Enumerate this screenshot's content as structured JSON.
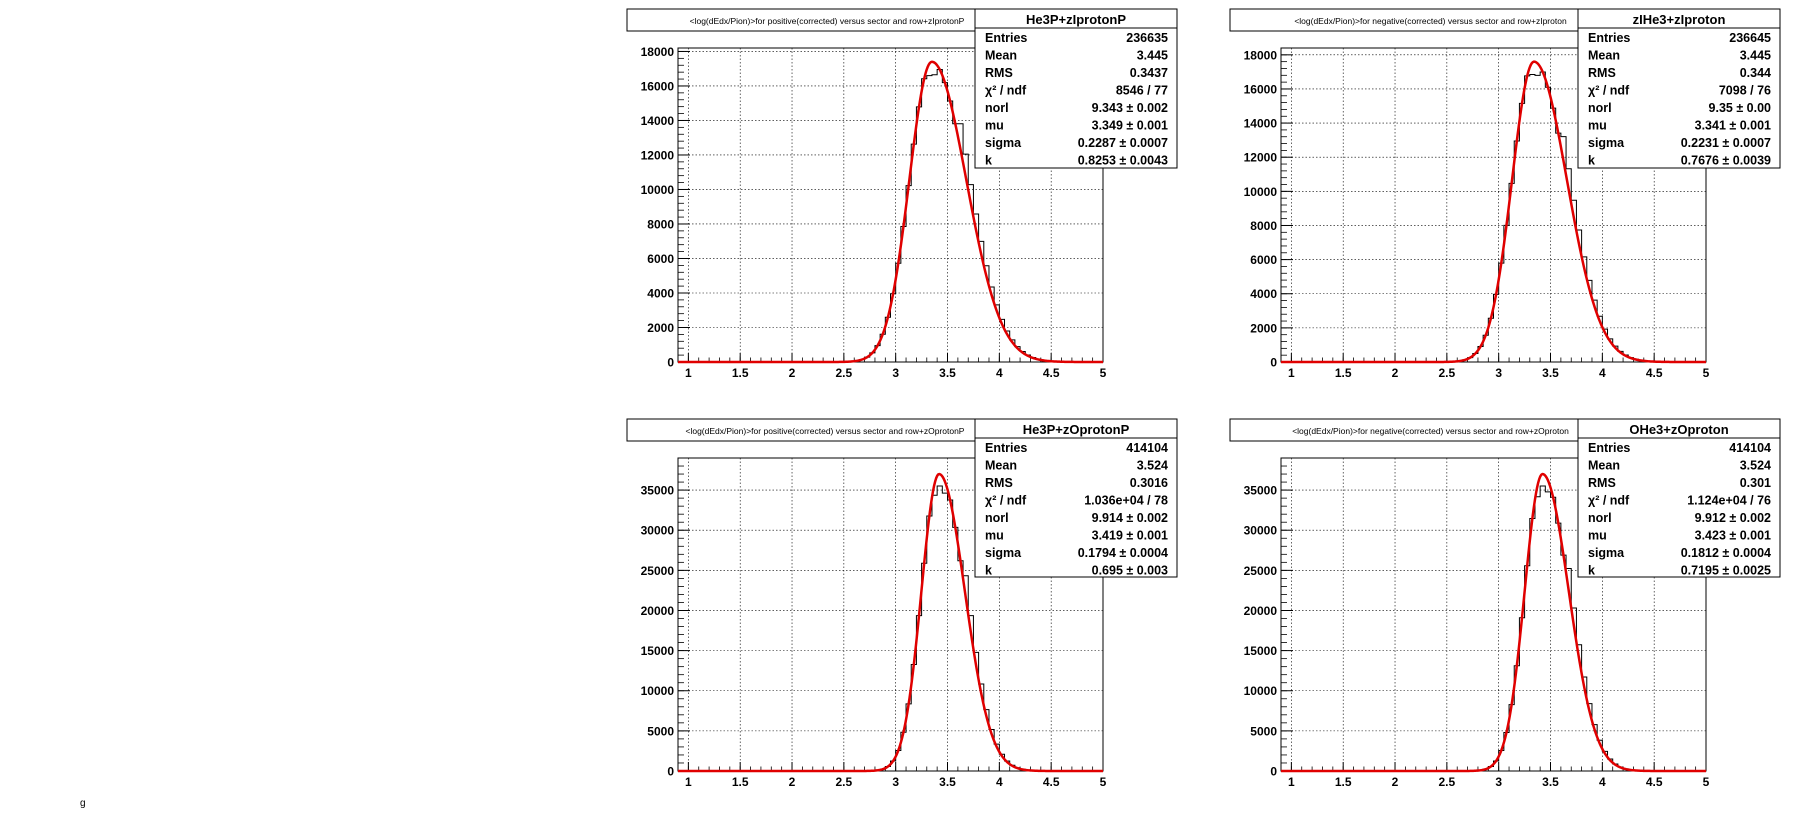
{
  "chart_data": [
    {
      "type": "histogram",
      "title": "<log(dEdx/Pion)>for positive(corrected) versus sector and row+zIprotonP",
      "xlim": [
        0.9,
        5.0
      ],
      "ylim": [
        0,
        18200
      ],
      "x_ticks": [
        "1",
        "1.5",
        "2",
        "2.5",
        "3",
        "3.5",
        "4",
        "4.5",
        "5"
      ],
      "y_ticks": [
        "0",
        "2000",
        "4000",
        "6000",
        "8000",
        "10000",
        "12000",
        "14000",
        "16000",
        "18000"
      ],
      "y_tick_values": [
        0,
        2000,
        4000,
        6000,
        8000,
        10000,
        12000,
        14000,
        16000,
        18000
      ],
      "grid": true,
      "fit": {
        "norl": 9.343,
        "mu": 3.349,
        "sigma": 0.2287,
        "k": 0.8253,
        "peak": 17400,
        "color": "#e00000"
      },
      "stats": {
        "name": "He3P+zIprotonP",
        "rows": [
          [
            "Entries",
            "236635"
          ],
          [
            "Mean",
            "3.445"
          ],
          [
            "RMS",
            "0.3437"
          ],
          [
            "χ² / ndf",
            "8546 / 77"
          ],
          [
            "norl",
            "9.343 ± 0.002"
          ],
          [
            "mu",
            "3.349 ± 0.001"
          ],
          [
            "sigma",
            "0.2287 ± 0.0007"
          ],
          [
            "k",
            "0.8253 ± 0.0043"
          ]
        ]
      }
    },
    {
      "type": "histogram",
      "title": "<log(dEdx/Pion)>for negative(corrected) versus sector and row+zIproton",
      "xlim": [
        0.9,
        5.0
      ],
      "ylim": [
        0,
        18400
      ],
      "x_ticks": [
        "1",
        "1.5",
        "2",
        "2.5",
        "3",
        "3.5",
        "4",
        "4.5",
        "5"
      ],
      "y_ticks": [
        "0",
        "2000",
        "4000",
        "6000",
        "8000",
        "10000",
        "12000",
        "14000",
        "16000",
        "18000"
      ],
      "y_tick_values": [
        0,
        2000,
        4000,
        6000,
        8000,
        10000,
        12000,
        14000,
        16000,
        18000
      ],
      "grid": true,
      "fit": {
        "norl": 9.35,
        "mu": 3.341,
        "sigma": 0.2231,
        "k": 0.7676,
        "peak": 17600,
        "color": "#e00000"
      },
      "stats": {
        "name": "zIHe3+zIproton",
        "rows": [
          [
            "Entries",
            "236645"
          ],
          [
            "Mean",
            "3.445"
          ],
          [
            "RMS",
            "0.344"
          ],
          [
            "χ² / ndf",
            "7098 / 76"
          ],
          [
            "norl",
            "9.35 ± 0.00"
          ],
          [
            "mu",
            "3.341 ± 0.001"
          ],
          [
            "sigma",
            "0.2231 ± 0.0007"
          ],
          [
            "k",
            "0.7676 ± 0.0039"
          ]
        ]
      }
    },
    {
      "type": "histogram",
      "title": "<log(dEdx/Pion)>for positive(corrected) versus sector and row+zOprotonP",
      "xlim": [
        0.9,
        5.0
      ],
      "ylim": [
        0,
        39000
      ],
      "x_ticks": [
        "1",
        "1.5",
        "2",
        "2.5",
        "3",
        "3.5",
        "4",
        "4.5",
        "5"
      ],
      "y_ticks": [
        "0",
        "5000",
        "10000",
        "15000",
        "20000",
        "25000",
        "30000",
        "35000"
      ],
      "y_tick_values": [
        0,
        5000,
        10000,
        15000,
        20000,
        25000,
        30000,
        35000
      ],
      "grid": true,
      "fit": {
        "norl": 9.914,
        "mu": 3.419,
        "sigma": 0.1794,
        "k": 0.695,
        "peak": 37000,
        "color": "#e00000"
      },
      "stats": {
        "name": "He3P+zOprotonP",
        "rows": [
          [
            "Entries",
            "414104"
          ],
          [
            "Mean",
            "3.524"
          ],
          [
            "RMS",
            "0.3016"
          ],
          [
            "χ² / ndf",
            "1.036e+04 / 78"
          ],
          [
            "norl",
            "9.914 ± 0.002"
          ],
          [
            "mu",
            "3.419 ± 0.001"
          ],
          [
            "sigma",
            "0.1794 ± 0.0004"
          ],
          [
            "k",
            "0.695 ± 0.003"
          ]
        ]
      }
    },
    {
      "type": "histogram",
      "title": "<log(dEdx/Pion)>for negative(corrected) versus sector and row+zOproton",
      "xlim": [
        0.9,
        5.0
      ],
      "ylim": [
        0,
        39000
      ],
      "x_ticks": [
        "1",
        "1.5",
        "2",
        "2.5",
        "3",
        "3.5",
        "4",
        "4.5",
        "5"
      ],
      "y_ticks": [
        "0",
        "5000",
        "10000",
        "15000",
        "20000",
        "25000",
        "30000",
        "35000"
      ],
      "y_tick_values": [
        0,
        5000,
        10000,
        15000,
        20000,
        25000,
        30000,
        35000
      ],
      "grid": true,
      "fit": {
        "norl": 9.912,
        "mu": 3.423,
        "sigma": 0.1812,
        "k": 0.7195,
        "peak": 37000,
        "color": "#e00000"
      },
      "stats": {
        "name": "OHe3+zOproton",
        "rows": [
          [
            "Entries",
            "414104"
          ],
          [
            "Mean",
            "3.524"
          ],
          [
            "RMS",
            "0.301"
          ],
          [
            "χ² / ndf",
            "1.124e+04 / 76"
          ],
          [
            "norl",
            "9.912 ± 0.002"
          ],
          [
            "mu",
            "3.423 ± 0.001"
          ],
          [
            "sigma",
            "0.1812 ± 0.0004"
          ],
          [
            "k",
            "0.7195 ± 0.0025"
          ]
        ]
      }
    }
  ],
  "corner_mark": "g"
}
